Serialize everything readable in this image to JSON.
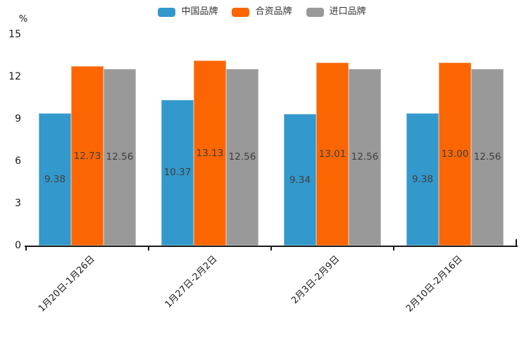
{
  "chart_data": {
    "type": "bar",
    "title": "",
    "ylabel": "%",
    "xlabel": "",
    "categories": [
      "1月20日-1月26日",
      "1月27日-2月2日",
      "2月3日-2月9日",
      "2月10日-2月16日"
    ],
    "series": [
      {
        "name": "中国品牌",
        "color": "#3398CB",
        "values": [
          9.38,
          10.37,
          9.34,
          9.38
        ]
      },
      {
        "name": "合资品牌",
        "color": "#FB6602",
        "values": [
          12.73,
          13.13,
          13.01,
          13.0
        ]
      },
      {
        "name": "进口品牌",
        "color": "#999999",
        "values": [
          12.56,
          12.56,
          12.56,
          12.56
        ]
      }
    ],
    "yticks": [
      0,
      3,
      6,
      9,
      12,
      15
    ],
    "ylim": [
      0,
      15
    ],
    "grid": false,
    "legend_position": "top-center",
    "value_label_format": "0.00",
    "value_label_position": "inside-middle",
    "xtick_rotation_deg": 45,
    "colors": {
      "axis": "#1a1a1a",
      "bar_value_label": "#3f3f3f",
      "legend_text": "#333333",
      "background": "#ffffff"
    }
  }
}
